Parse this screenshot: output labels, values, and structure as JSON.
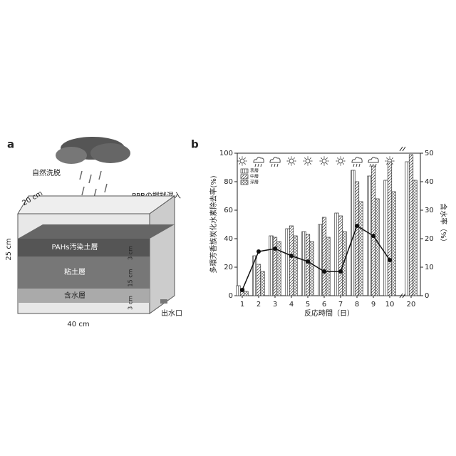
{
  "panel_a": {
    "label": "a",
    "rain": "自然洗脱",
    "mixing": "PPBの撹拌混入",
    "width_top": "20 cm",
    "height": "25 cm",
    "length": "40 cm",
    "layer_top": "PAHs汚染土層",
    "layer_mid": "粘土層",
    "layer_bottom": "含水層",
    "depth_top": "3 cm",
    "depth_mid": "15 cm",
    "depth_bottom": "3 cm",
    "outlet": "出水口"
  },
  "chart_data": {
    "type": "bar",
    "panel_label": "b",
    "x_label": "反応時間（日）",
    "y_label": "多環芳香族炭化水素除去率(%)",
    "y2_label": "含水率（%）",
    "categories": [
      "1",
      "2",
      "3",
      "4",
      "5",
      "6",
      "7",
      "8",
      "9",
      "10",
      "20"
    ],
    "series": [
      {
        "name": "表層",
        "color": "#333333",
        "values": [
          7,
          28,
          42,
          47,
          45,
          50,
          58,
          88,
          84,
          81,
          94
        ]
      },
      {
        "name": "中層",
        "color": "#333333",
        "values": [
          5,
          22,
          41,
          49,
          43,
          55,
          56,
          80,
          91,
          94,
          99
        ]
      },
      {
        "name": "深層",
        "color": "#333333",
        "values": [
          3,
          17,
          38,
          42,
          38,
          41,
          45,
          66,
          68,
          73,
          81
        ]
      },
      {
        "name": "含水率",
        "type": "line",
        "axis": "y2",
        "color": "#111111",
        "values": [
          2,
          15.5,
          16.5,
          14,
          12,
          8.5,
          8.5,
          24.5,
          21,
          12.5,
          null
        ]
      }
    ],
    "ylim": [
      0,
      100
    ],
    "yticks": [
      0,
      20,
      40,
      60,
      80,
      100
    ],
    "y2lim": [
      0,
      50
    ],
    "y2ticks": [
      0,
      10,
      20,
      30,
      40,
      50
    ]
  }
}
